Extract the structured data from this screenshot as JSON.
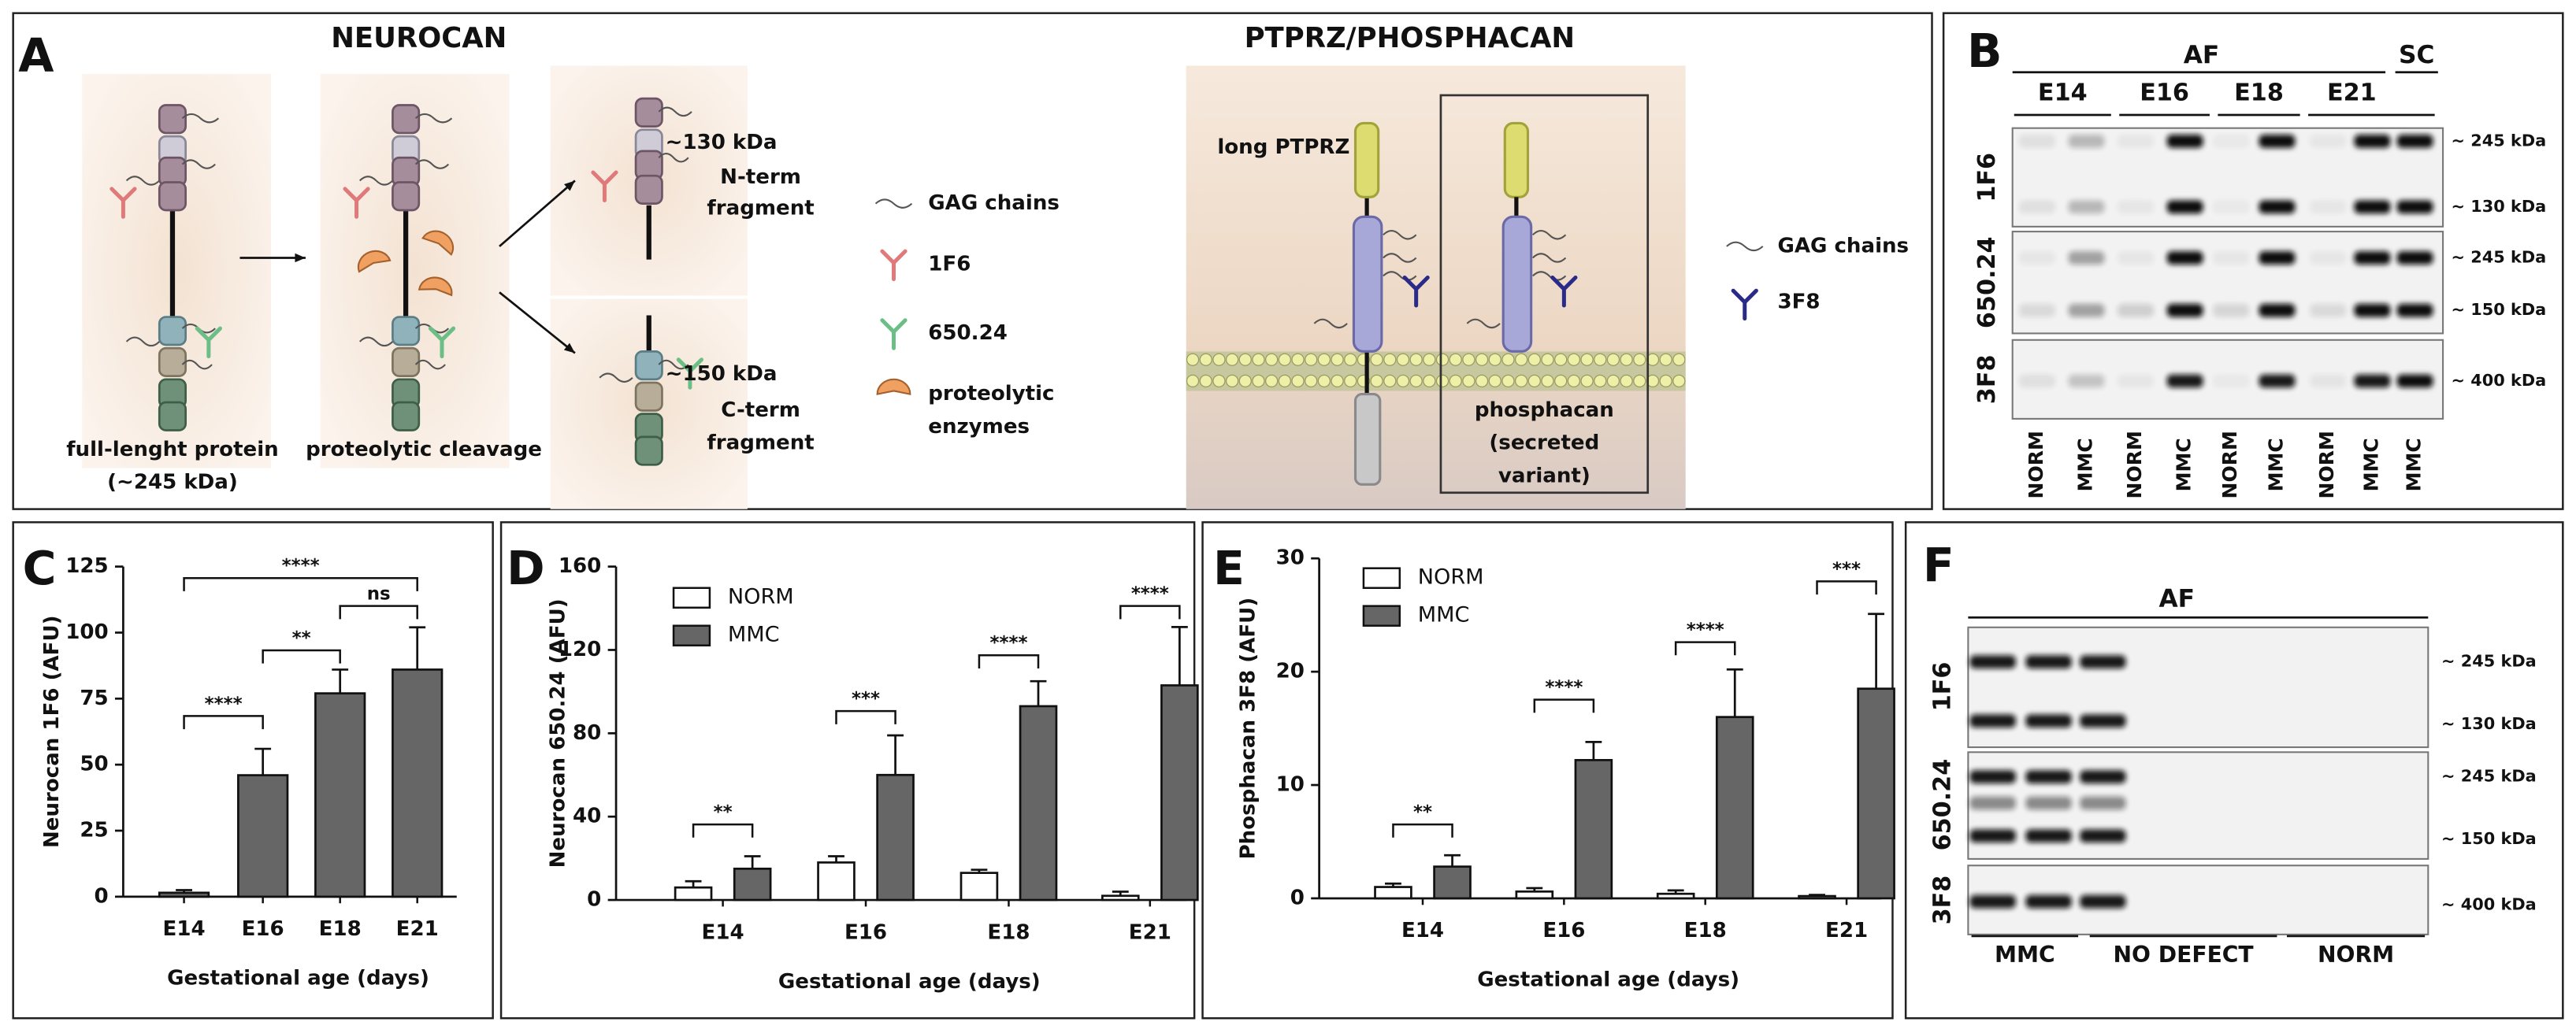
{
  "panel_labels": [
    "A",
    "B",
    "C",
    "D",
    "E",
    "F"
  ],
  "panel_a": {
    "neurocan_title": "NEUROCAN",
    "full_label": [
      "full-lenght protein",
      "(~245 kDa)"
    ],
    "cleavage_label": "proteolytic cleavage",
    "n_fragment": [
      "~130 kDa",
      "N-term",
      "fragment"
    ],
    "c_fragment": [
      "~150 kDa",
      "C-term",
      "fragment"
    ],
    "legend": [
      "GAG chains",
      "1F6",
      "650.24",
      "proteolytic",
      "enzymes"
    ],
    "ptprz_title": "PTPRZ/PHOSPHACAN",
    "long_label": "long PTPRZ",
    "phosphacan_label": [
      "phosphacan",
      "(secreted",
      "variant)"
    ],
    "ptprz_legend": [
      "GAG chains",
      "3F8"
    ]
  },
  "panel_b": {
    "group_af": "AF",
    "group_sc": "SC",
    "stages": [
      "E14",
      "E16",
      "E18",
      "E21"
    ],
    "rows": [
      "1F6",
      "650.24",
      "3F8"
    ],
    "kda": [
      "~ 245 kDa",
      "~ 130 kDa",
      "~ 245 kDa",
      "~ 150 kDa",
      "~ 400 kDa"
    ],
    "lanes": [
      "NORM",
      "MMC",
      "NORM",
      "MMC",
      "NORM",
      "MMC",
      "NORM",
      "MMC",
      "MMC"
    ]
  },
  "panel_f": {
    "group_af": "AF",
    "rows": [
      "1F6",
      "650.24",
      "3F8"
    ],
    "kda": [
      "~ 245 kDa",
      "~ 130 kDa",
      "~ 245 kDa",
      "~ 150 kDa",
      "~ 400 kDa"
    ],
    "groups": [
      "MMC",
      "NO DEFECT",
      "NORM"
    ]
  },
  "chart_data": [
    {
      "type": "bar",
      "ylabel": "Neurocan 1F6 (AFU)",
      "xlabel": "Gestational age (days)",
      "categories": [
        "E14",
        "E16",
        "E18",
        "E21"
      ],
      "values": [
        1.5,
        46,
        77,
        86
      ],
      "errors": [
        1,
        10,
        9,
        16
      ],
      "color": "#666666",
      "ylim": [
        0,
        125
      ],
      "yticks": [
        0,
        25,
        50,
        75,
        100,
        125
      ],
      "annotations": [
        "****",
        "**",
        "ns",
        "****"
      ]
    },
    {
      "type": "grouped_bar",
      "ylabel": "Neurocan 650.24 (AFU)",
      "xlabel": "Gestational age (days)",
      "categories": [
        "E14",
        "E16",
        "E18",
        "E21"
      ],
      "series": [
        {
          "name": "NORM",
          "color": "#ffffff",
          "values": [
            6,
            18,
            13,
            2
          ],
          "errors": [
            3,
            3,
            1.5,
            2
          ]
        },
        {
          "name": "MMC",
          "color": "#666666",
          "values": [
            15,
            60,
            93,
            103
          ],
          "errors": [
            6,
            19,
            12,
            28
          ]
        }
      ],
      "ylim": [
        0,
        160
      ],
      "yticks": [
        0,
        40,
        80,
        120,
        160
      ],
      "annotations": [
        "**",
        "***",
        "****",
        "****"
      ]
    },
    {
      "type": "grouped_bar",
      "ylabel": "Phosphacan 3F8 (AFU)",
      "xlabel": "Gestational age (days)",
      "categories": [
        "E14",
        "E16",
        "E18",
        "E21"
      ],
      "series": [
        {
          "name": "NORM",
          "color": "#ffffff",
          "values": [
            1.0,
            0.6,
            0.4,
            0.2
          ],
          "errors": [
            0.3,
            0.3,
            0.3,
            0.1
          ]
        },
        {
          "name": "MMC",
          "color": "#666666",
          "values": [
            2.8,
            12.2,
            16,
            18.5
          ],
          "errors": [
            1,
            1.6,
            4.2,
            6.6
          ]
        }
      ],
      "ylim": [
        0,
        30
      ],
      "yticks": [
        0,
        10,
        20,
        30
      ],
      "annotations": [
        "**",
        "****",
        "****",
        "***"
      ]
    }
  ]
}
